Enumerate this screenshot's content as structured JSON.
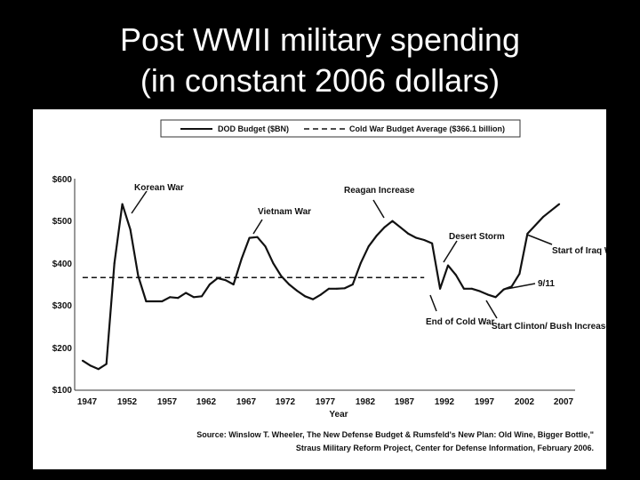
{
  "slide": {
    "title_line1": "Post WWII military spending",
    "title_line2": "(in constant 2006 dollars)"
  },
  "chart_data": {
    "type": "line",
    "title": "Post WWII military spending (in constant 2006 dollars)",
    "xlabel": "Year",
    "ylabel": "",
    "xlim": [
      1946,
      2009
    ],
    "ylim": [
      100,
      600
    ],
    "x_ticks": [
      1947,
      1952,
      1957,
      1962,
      1967,
      1972,
      1977,
      1982,
      1987,
      1992,
      1997,
      2002,
      2007
    ],
    "y_ticks": [
      {
        "value": 100,
        "label": "$100"
      },
      {
        "value": 200,
        "label": "$200"
      },
      {
        "value": 300,
        "label": "$300"
      },
      {
        "value": 400,
        "label": "$400"
      },
      {
        "value": 500,
        "label": "$500"
      },
      {
        "value": 600,
        "label": "$600"
      }
    ],
    "legend": {
      "placement": "top",
      "entries": [
        {
          "label": "DOD Budget ($BN)",
          "style": "solid"
        },
        {
          "label": "Cold War Budget Average ($366.1 billion)",
          "style": "dashed"
        }
      ]
    },
    "series": [
      {
        "name": "DOD Budget ($BN)",
        "x": [
          1947,
          1948,
          1949,
          1950,
          1951,
          1952,
          1953,
          1954,
          1955,
          1956,
          1957,
          1958,
          1959,
          1960,
          1961,
          1962,
          1963,
          1964,
          1965,
          1966,
          1967,
          1968,
          1969,
          1970,
          1971,
          1972,
          1973,
          1974,
          1975,
          1976,
          1977,
          1978,
          1979,
          1980,
          1981,
          1982,
          1983,
          1984,
          1985,
          1986,
          1987,
          1988,
          1989,
          1990,
          1991,
          1992,
          1993,
          1994,
          1995,
          1996,
          1997,
          1998,
          1999,
          2000,
          2001,
          2002,
          2003,
          2004,
          2005,
          2006,
          2007
        ],
        "values": [
          170,
          158,
          150,
          162,
          400,
          540,
          480,
          370,
          310,
          310,
          310,
          320,
          318,
          330,
          320,
          322,
          350,
          365,
          360,
          350,
          410,
          460,
          462,
          440,
          400,
          370,
          350,
          335,
          322,
          315,
          326,
          340,
          340,
          341,
          350,
          400,
          440,
          465,
          485,
          500,
          485,
          470,
          460,
          455,
          447,
          340,
          395,
          372,
          340,
          340,
          334,
          326,
          320,
          338,
          345,
          375,
          470,
          490,
          510,
          525,
          540
        ]
      },
      {
        "name": "Cold War Budget Average ($366.1 billion)",
        "x": [
          1947,
          1990
        ],
        "values": [
          366.1,
          366.1
        ]
      }
    ],
    "annotations": [
      {
        "text": "Korean War",
        "x": 1952,
        "y": 540
      },
      {
        "text": "Vietnam War",
        "x": 1968,
        "y": 462
      },
      {
        "text": "Reagan Increase",
        "x": 1986,
        "y": 500
      },
      {
        "text": "Desert Storm",
        "x": 1992,
        "y": 395
      },
      {
        "text": "End of Cold War",
        "x": 1991,
        "y": 340
      },
      {
        "text": "Start Clinton/ Bush Increase",
        "x": 1999,
        "y": 320
      },
      {
        "text": "9/11",
        "x": 2001,
        "y": 345
      },
      {
        "text": "Start of Iraq War",
        "x": 2003,
        "y": 470
      }
    ],
    "source": {
      "line1": "Source: Winslow T. Wheeler, The New Defense Budget & Rumsfeld's New Plan: Old Wine, Bigger Bottle,\"",
      "line2": "Straus Military Reform Project, Center for Defense Information, February 2006."
    }
  }
}
